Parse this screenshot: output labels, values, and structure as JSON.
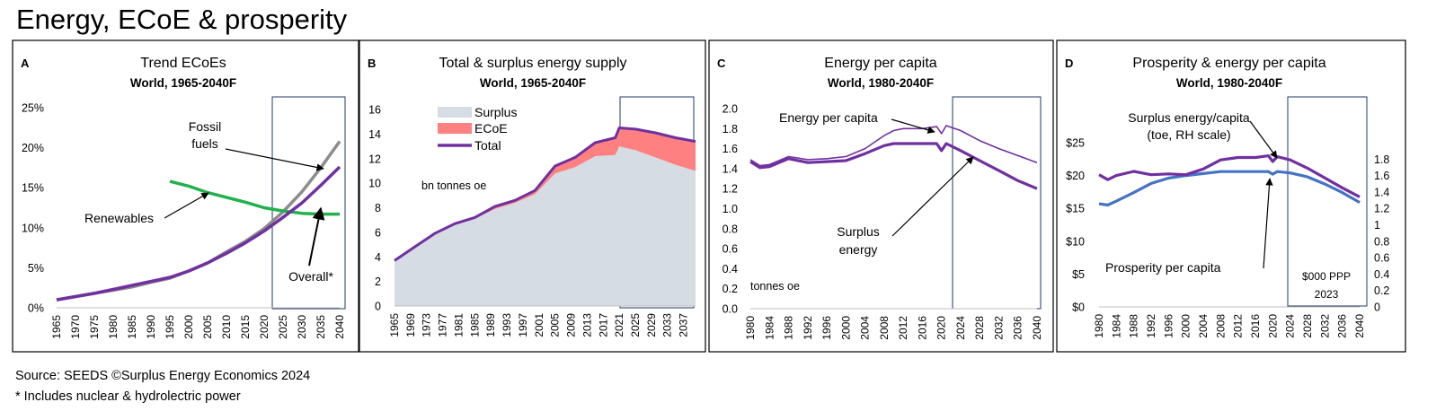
{
  "title": "Energy, ECoE & prosperity",
  "footer": {
    "source": "Source: SEEDS  ©Surplus Energy Economics 2024",
    "note": "* Includes nuclear & hydrolectric power"
  },
  "chart_data": [
    {
      "id": "A",
      "type": "line",
      "panel_letter": "A",
      "title": "Trend ECoEs",
      "subtitle": "World, 1965-2040F",
      "xlabel": "",
      "ylabel": "",
      "xlim": [
        1965,
        2040
      ],
      "ylim": [
        0,
        25
      ],
      "y_ticks": [
        "0%",
        "5%",
        "10%",
        "15%",
        "20%",
        "25%"
      ],
      "x_ticks": [
        "1965",
        "1970",
        "1975",
        "1980",
        "1985",
        "1990",
        "1995",
        "2000",
        "2005",
        "2010",
        "2015",
        "2020",
        "2025",
        "2030",
        "2035",
        "2040"
      ],
      "forecast_from": 2023,
      "grid": false,
      "series": [
        {
          "name": "Fossil fuels",
          "color": "#8c8c8c",
          "x": [
            1965,
            1970,
            1975,
            1980,
            1985,
            1990,
            1995,
            2000,
            2005,
            2010,
            2015,
            2020,
            2025,
            2030,
            2035,
            2040
          ],
          "y": [
            1.0,
            1.4,
            1.8,
            2.2,
            2.6,
            3.2,
            3.7,
            4.6,
            5.6,
            7.0,
            8.3,
            9.9,
            12.0,
            14.5,
            17.5,
            20.8
          ]
        },
        {
          "name": "Renewables",
          "color": "#22b14c",
          "x": [
            1995,
            2000,
            2005,
            2010,
            2015,
            2020,
            2025,
            2030,
            2035,
            2040
          ],
          "y": [
            15.8,
            15.2,
            14.4,
            13.8,
            13.2,
            12.5,
            12.1,
            11.8,
            11.7,
            11.7
          ]
        },
        {
          "name": "Overall*",
          "color": "#7030a0",
          "x": [
            1965,
            1970,
            1975,
            1980,
            1985,
            1990,
            1995,
            2000,
            2005,
            2010,
            2015,
            2020,
            2025,
            2030,
            2035,
            2040
          ],
          "y": [
            1.0,
            1.4,
            1.8,
            2.3,
            2.8,
            3.3,
            3.8,
            4.6,
            5.6,
            6.8,
            8.1,
            9.6,
            11.3,
            13.1,
            15.3,
            17.6
          ]
        }
      ],
      "annotations": [
        "Fossil",
        "fuels",
        "Renewables",
        "Overall*"
      ]
    },
    {
      "id": "B",
      "type": "area",
      "panel_letter": "B",
      "title": "Total & surplus energy supply",
      "subtitle": "World, 1965-2040F",
      "ylabel": "bn tonnes oe",
      "xlim": [
        1965,
        2040
      ],
      "ylim": [
        0,
        16
      ],
      "y_ticks": [
        "0",
        "2",
        "4",
        "6",
        "8",
        "10",
        "12",
        "14",
        "16"
      ],
      "x_ticks": [
        "1965",
        "1969",
        "1973",
        "1977",
        "1981",
        "1985",
        "1989",
        "1993",
        "1997",
        "2001",
        "2005",
        "2009",
        "2013",
        "2017",
        "2021",
        "2025",
        "2029",
        "2033",
        "2037"
      ],
      "forecast_from": 2021,
      "legend": {
        "position": "top-left",
        "items": [
          "Surplus",
          "ECoE",
          "Total"
        ]
      },
      "colors": {
        "surplus": "#d6dce4",
        "ecoe": "#ff8080",
        "total": "#7030a0"
      },
      "x": [
        1965,
        1970,
        1975,
        1980,
        1985,
        1990,
        1995,
        2000,
        2005,
        2010,
        2015,
        2020,
        2021,
        2025,
        2030,
        2035,
        2040
      ],
      "series": [
        {
          "name": "Total",
          "values": [
            3.7,
            4.8,
            5.9,
            6.7,
            7.2,
            8.1,
            8.6,
            9.4,
            11.4,
            12.1,
            13.3,
            13.7,
            14.5,
            14.4,
            14.1,
            13.7,
            13.4
          ]
        },
        {
          "name": "Surplus",
          "values": [
            3.7,
            4.8,
            5.9,
            6.6,
            7.1,
            7.9,
            8.4,
            9.1,
            10.8,
            11.3,
            12.2,
            12.3,
            13.0,
            12.7,
            12.1,
            11.5,
            11.0
          ]
        }
      ]
    },
    {
      "id": "C",
      "type": "line",
      "panel_letter": "C",
      "title": "Energy per capita",
      "subtitle": "World, 1980-2040F",
      "ylabel": "tonnes oe",
      "xlim": [
        1980,
        2040
      ],
      "ylim": [
        0,
        2.0
      ],
      "y_ticks": [
        "0.0",
        "0.2",
        "0.4",
        "0.6",
        "0.8",
        "1.0",
        "1.2",
        "1.4",
        "1.6",
        "1.8",
        "2.0"
      ],
      "x_ticks": [
        "1980",
        "1984",
        "1988",
        "1992",
        "1996",
        "2000",
        "2004",
        "2008",
        "2012",
        "2016",
        "2020",
        "2024",
        "2028",
        "2032",
        "2036",
        "2040"
      ],
      "forecast_from": 2021,
      "series": [
        {
          "name": "Energy per capita",
          "color": "#7030a0",
          "x": [
            1980,
            1982,
            1984,
            1988,
            1992,
            1996,
            2000,
            2004,
            2008,
            2010,
            2012,
            2016,
            2019,
            2020,
            2021,
            2024,
            2028,
            2032,
            2036,
            2040
          ],
          "y": [
            1.49,
            1.43,
            1.44,
            1.52,
            1.49,
            1.5,
            1.52,
            1.6,
            1.73,
            1.78,
            1.8,
            1.8,
            1.82,
            1.75,
            1.83,
            1.78,
            1.68,
            1.6,
            1.53,
            1.46
          ]
        },
        {
          "name": "Surplus energy",
          "color": "#7030a0",
          "x": [
            1980,
            1982,
            1984,
            1988,
            1992,
            1996,
            2000,
            2004,
            2008,
            2010,
            2012,
            2016,
            2019,
            2020,
            2021,
            2024,
            2028,
            2032,
            2036,
            2040
          ],
          "y": [
            1.47,
            1.41,
            1.42,
            1.5,
            1.46,
            1.47,
            1.48,
            1.55,
            1.63,
            1.65,
            1.65,
            1.65,
            1.65,
            1.58,
            1.65,
            1.58,
            1.48,
            1.38,
            1.28,
            1.2
          ]
        }
      ],
      "annotations": [
        "Energy per capita",
        "Surplus",
        "energy"
      ]
    },
    {
      "id": "D",
      "type": "line",
      "panel_letter": "D",
      "title": "Prosperity & energy per capita",
      "subtitle": "World, 1980-2040F",
      "xlim": [
        1980,
        2040
      ],
      "ylim": [
        0,
        25
      ],
      "y2lim": [
        0,
        2.0
      ],
      "y_ticks": [
        "$0",
        "$5",
        "$10",
        "$15",
        "$20",
        "$25"
      ],
      "y2_ticks": [
        "0",
        "0.2",
        "0.4",
        "0.6",
        "0.8",
        "1",
        "1.2",
        "1.4",
        "1.6",
        "1.8"
      ],
      "x_ticks": [
        "1980",
        "1984",
        "1988",
        "1992",
        "1996",
        "2000",
        "2004",
        "2008",
        "2012",
        "2016",
        "2020",
        "2024",
        "2028",
        "2032",
        "2036",
        "2040"
      ],
      "forecast_from": 2023,
      "unit_note": [
        "$000 PPP",
        "2023"
      ],
      "series": [
        {
          "name": "Prosperity per capita",
          "axis": "left",
          "color": "#4472c4",
          "x": [
            1980,
            1982,
            1984,
            1988,
            1992,
            1996,
            2000,
            2004,
            2008,
            2012,
            2016,
            2019,
            2020,
            2021,
            2024,
            2028,
            2032,
            2036,
            2040
          ],
          "y": [
            15.7,
            15.5,
            16.1,
            17.4,
            18.8,
            19.6,
            20.0,
            20.3,
            20.6,
            20.6,
            20.6,
            20.6,
            20.2,
            20.6,
            20.4,
            19.8,
            18.7,
            17.4,
            15.9
          ]
        },
        {
          "name": "Surplus energy/capita",
          "axis": "right",
          "color": "#7030a0",
          "x": [
            1980,
            1982,
            1984,
            1988,
            1992,
            1996,
            2000,
            2004,
            2008,
            2012,
            2016,
            2019,
            2020,
            2021,
            2024,
            2028,
            2032,
            2036,
            2040
          ],
          "y": [
            1.61,
            1.55,
            1.6,
            1.65,
            1.61,
            1.62,
            1.61,
            1.68,
            1.79,
            1.82,
            1.82,
            1.84,
            1.77,
            1.83,
            1.79,
            1.69,
            1.57,
            1.45,
            1.34
          ]
        }
      ],
      "annotations": [
        "Surplus energy/capita",
        "(toe, RH scale)",
        "Prosperity per capita"
      ]
    }
  ]
}
